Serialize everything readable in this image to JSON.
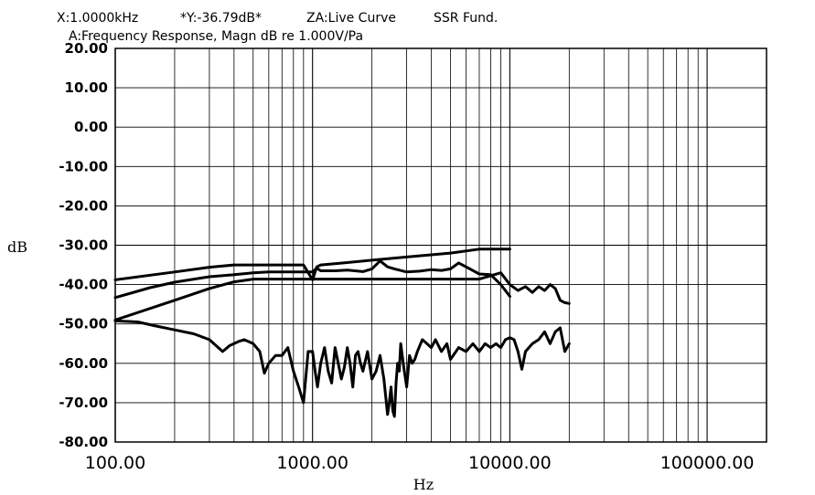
{
  "header": {
    "cursor_x": "X:1.0000kHz",
    "cursor_y": "*Y:-36.79dB*",
    "zone": "ZA:Live Curve",
    "mode": "SSR Fund.",
    "subtitle": "A:Frequency Response, Magn dB re 1.000V/Pa"
  },
  "chart_data": {
    "type": "line",
    "title": "A:Frequency Response, Magn dB re 1.000V/Pa",
    "xlabel": "Hz",
    "ylabel": "dB",
    "xscale": "log",
    "xlim": [
      100,
      200000
    ],
    "ylim": [
      -80,
      20
    ],
    "grid": true,
    "line_color": "#000000",
    "x_tick_labels": [
      "100.00",
      "1000.00",
      "10000.00",
      "100000.00"
    ],
    "x_tick_values": [
      100,
      1000,
      10000,
      100000
    ],
    "y_tick_labels": [
      "20.00",
      "10.00",
      "0.00",
      "-10.00",
      "-20.00",
      "-30.00",
      "-40.00",
      "-50.00",
      "-60.00",
      "-70.00",
      "-80.00"
    ],
    "y_tick_values": [
      20,
      10,
      0,
      -10,
      -20,
      -30,
      -40,
      -50,
      -60,
      -70,
      -80
    ],
    "series": [
      {
        "x": [
          100,
          200,
          300,
          400,
          500,
          700,
          900,
          1000,
          1050,
          1100,
          1500,
          2000,
          3000,
          5000,
          7000,
          10000
        ],
        "y": [
          -38.8,
          -36.8,
          -35.6,
          -35,
          -35,
          -35,
          -35,
          -38.8,
          -35.5,
          -35,
          -34.4,
          -33.8,
          -33,
          -32,
          -31,
          -31
        ]
      },
      {
        "x": [
          100,
          150,
          200,
          300,
          400,
          500,
          600,
          700,
          800,
          900,
          1000,
          1050,
          1100,
          1300,
          1500,
          1800,
          2000,
          2200,
          2400,
          2600,
          3000,
          3500,
          4000,
          4500,
          5000,
          5500,
          6000,
          7000,
          8000,
          9000,
          10000
        ],
        "y": [
          -43.3,
          -40.8,
          -39.4,
          -38,
          -37.5,
          -37,
          -36.8,
          -36.8,
          -36.8,
          -36.8,
          -36.8,
          -35.8,
          -36.5,
          -36.5,
          -36.3,
          -36.7,
          -36,
          -34,
          -35.5,
          -36,
          -36.8,
          -36.6,
          -36.2,
          -36.4,
          -36,
          -34.5,
          -35.5,
          -37.3,
          -37.5,
          -40,
          -43
        ]
      },
      {
        "x": [
          100,
          200,
          300,
          400,
          500,
          700,
          900,
          1000,
          1050,
          2000,
          5000,
          7000,
          9000,
          10000,
          11000,
          12000,
          13000,
          14000,
          15000,
          16000,
          17000,
          18000,
          19000,
          20000
        ],
        "y": [
          -49,
          -44,
          -41,
          -39.3,
          -38.6,
          -38.6,
          -38.6,
          -38.6,
          -38.6,
          -38.6,
          -38.6,
          -38.6,
          -37,
          -40,
          -41.5,
          -40.5,
          -42,
          -40.5,
          -41.5,
          -40,
          -41,
          -44,
          -44.6,
          -44.8
        ]
      },
      {
        "x": [
          100,
          130,
          160,
          200,
          250,
          300,
          350,
          380,
          420,
          450,
          500,
          540,
          570,
          600,
          650,
          700,
          750,
          800,
          850,
          900,
          950,
          1000,
          1030,
          1060,
          1100,
          1150,
          1200,
          1250,
          1300,
          1350,
          1400,
          1450,
          1500,
          1550,
          1600,
          1650,
          1700,
          1750,
          1800,
          1900,
          2000,
          2100,
          2200,
          2300,
          2400,
          2450,
          2500,
          2550,
          2600,
          2650,
          2700,
          2750,
          2800,
          2900,
          3000,
          3100,
          3200,
          3300,
          3400,
          3600,
          3800,
          4000,
          4200,
          4500,
          4800,
          5000,
          5500,
          6000,
          6500,
          7000,
          7500,
          8000,
          8500,
          9000,
          9500,
          10000,
          10500,
          11000,
          11500,
          12000,
          13000,
          14000,
          15000,
          16000,
          17000,
          18000,
          19000,
          20000
        ],
        "y": [
          -49.2,
          -49.5,
          -50.5,
          -51.5,
          -52.5,
          -54,
          -57,
          -55.5,
          -54.5,
          -54,
          -55,
          -57,
          -62.5,
          -60,
          -58,
          -58,
          -56,
          -62,
          -66,
          -70,
          -57,
          -57,
          -62,
          -66,
          -60,
          -56,
          -62,
          -65,
          -56,
          -60,
          -64,
          -61,
          -56,
          -60,
          -66,
          -58,
          -57,
          -60,
          -62,
          -57,
          -64,
          -62,
          -58,
          -64,
          -73,
          -70,
          -66,
          -72,
          -73.5,
          -65,
          -60,
          -62,
          -55,
          -61,
          -66,
          -58,
          -60,
          -59,
          -57,
          -54,
          -55,
          -56,
          -54,
          -57,
          -55,
          -59,
          -56,
          -57,
          -55,
          -57,
          -55,
          -56,
          -55,
          -56,
          -54,
          -53.5,
          -54,
          -57,
          -61.5,
          -57,
          -55,
          -54,
          -52,
          -55,
          -52,
          -51,
          -57,
          -55
        ]
      }
    ]
  }
}
